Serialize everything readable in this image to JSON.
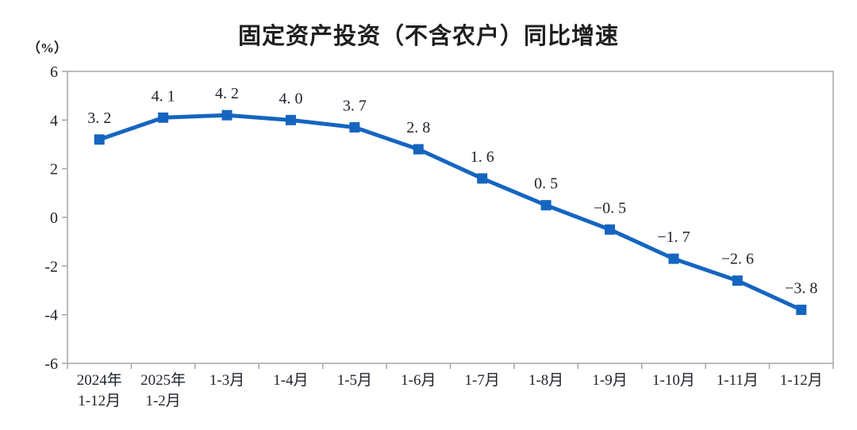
{
  "page": {
    "background_color": "#ffffff"
  },
  "chart_data": {
    "type": "line",
    "title": "固定资产投资（不含农户）同比增速",
    "y_unit_label": "（%）",
    "categories": [
      "2024年\n1-12月",
      "2025年\n1-2月",
      "1-3月",
      "1-4月",
      "1-5月",
      "1-6月",
      "1-7月",
      "1-8月",
      "1-9月",
      "1-10月",
      "1-11月",
      "1-12月"
    ],
    "values": [
      3.2,
      4.1,
      4.2,
      4.0,
      3.7,
      2.8,
      1.6,
      0.5,
      -0.5,
      -1.7,
      -2.6,
      -3.8
    ],
    "point_labels": [
      "3. 2",
      "4. 1",
      "4. 2",
      "4. 0",
      "3. 7",
      "2. 8",
      "1. 6",
      "0. 5",
      "−0. 5",
      "−1. 7",
      "−2. 6",
      "−3. 8"
    ],
    "xlabel": "",
    "ylabel": "（%）",
    "ylim": [
      -6,
      6
    ],
    "ytick_step": 2,
    "ytick_labels": [
      "6",
      "4",
      "2",
      "0",
      "-2",
      "-4",
      "-6"
    ],
    "grid": false,
    "legend": "none",
    "marker": "square",
    "colors": {
      "series_line": "#1565c0",
      "marker_fill": "#1565c0",
      "axis_frame": "#a6a6a6",
      "text": "#20242c",
      "title_text": "#1f1f1f"
    }
  }
}
